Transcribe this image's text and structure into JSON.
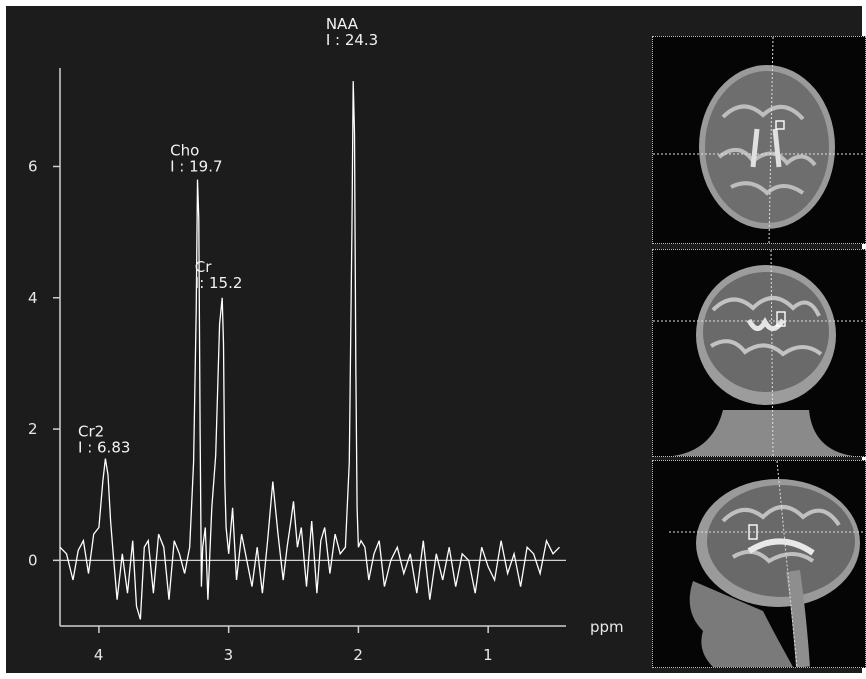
{
  "chart_data": {
    "type": "line",
    "title": "",
    "xlabel": "ppm",
    "ylabel": "",
    "x_reversed": true,
    "xlim": [
      4.3,
      0.4
    ],
    "ylim": [
      -1.0,
      7.5
    ],
    "x_ticks": [
      4,
      3,
      2,
      1
    ],
    "y_ticks": [
      0,
      2,
      4,
      6
    ],
    "grid": false,
    "series": [
      {
        "values_description_free": true,
        "x": [
          4.3,
          4.25,
          4.2,
          4.16,
          4.12,
          4.08,
          4.04,
          4.0,
          3.97,
          3.95,
          3.93,
          3.91,
          3.89,
          3.86,
          3.82,
          3.78,
          3.74,
          3.71,
          3.68,
          3.65,
          3.62,
          3.58,
          3.54,
          3.5,
          3.46,
          3.42,
          3.38,
          3.34,
          3.3,
          3.27,
          3.25,
          3.24,
          3.23,
          3.22,
          3.21,
          3.2,
          3.18,
          3.16,
          3.13,
          3.1,
          3.07,
          3.05,
          3.04,
          3.03,
          3.02,
          3.0,
          2.97,
          2.94,
          2.9,
          2.86,
          2.82,
          2.78,
          2.74,
          2.7,
          2.66,
          2.62,
          2.58,
          2.55,
          2.52,
          2.5,
          2.47,
          2.44,
          2.4,
          2.36,
          2.32,
          2.29,
          2.26,
          2.22,
          2.18,
          2.14,
          2.1,
          2.07,
          2.05,
          2.04,
          2.03,
          2.02,
          2.01,
          2.0,
          1.98,
          1.95,
          1.92,
          1.88,
          1.84,
          1.8,
          1.75,
          1.7,
          1.65,
          1.6,
          1.55,
          1.5,
          1.45,
          1.4,
          1.35,
          1.3,
          1.25,
          1.2,
          1.15,
          1.1,
          1.05,
          1.0,
          0.95,
          0.9,
          0.85,
          0.8,
          0.75,
          0.7,
          0.65,
          0.6,
          0.55,
          0.5,
          0.45
        ],
        "y": [
          0.2,
          0.1,
          -0.3,
          0.15,
          0.3,
          -0.2,
          0.4,
          0.5,
          1.2,
          1.55,
          1.3,
          0.6,
          0.1,
          -0.6,
          0.1,
          -0.5,
          0.3,
          -0.7,
          -0.9,
          0.2,
          0.3,
          -0.5,
          0.4,
          0.2,
          -0.6,
          0.3,
          0.1,
          -0.2,
          0.2,
          1.5,
          3.8,
          5.8,
          5.2,
          2.0,
          -0.4,
          0.2,
          0.5,
          -0.6,
          0.8,
          1.6,
          3.6,
          4.0,
          3.3,
          1.2,
          0.5,
          0.1,
          0.8,
          -0.3,
          0.4,
          0.0,
          -0.4,
          0.2,
          -0.5,
          0.3,
          1.2,
          0.4,
          -0.3,
          0.2,
          0.6,
          0.9,
          0.2,
          0.5,
          -0.4,
          0.6,
          -0.5,
          0.3,
          0.5,
          -0.2,
          0.4,
          0.1,
          0.2,
          1.5,
          5.0,
          7.3,
          6.5,
          3.0,
          0.8,
          0.2,
          0.3,
          0.2,
          -0.3,
          0.1,
          0.3,
          -0.4,
          0.0,
          0.2,
          -0.2,
          0.1,
          -0.5,
          0.3,
          -0.6,
          0.1,
          -0.3,
          0.2,
          -0.4,
          0.1,
          0.0,
          -0.5,
          0.2,
          -0.1,
          -0.3,
          0.3,
          -0.2,
          0.1,
          -0.4,
          0.2,
          0.1,
          -0.2,
          0.3,
          0.1,
          0.2
        ]
      }
    ],
    "annotations": [
      {
        "name": "NAA",
        "value_text": "I : 24.3",
        "x": 2.02,
        "y": 7.3
      },
      {
        "name": "Cho",
        "value_text": "I : 19.7",
        "x": 3.22,
        "y": 5.8
      },
      {
        "name": "Cr",
        "value_text": "I: 15.2",
        "x": 3.03,
        "y": 4.0
      },
      {
        "name": "Cr2",
        "value_text": "I : 6.83",
        "x": 3.93,
        "y": 1.55
      }
    ]
  },
  "axis": {
    "x_unit": "ppm",
    "x_ticks": [
      "4",
      "3",
      "2",
      "1"
    ],
    "y_ticks": [
      "0",
      "2",
      "4",
      "6"
    ]
  },
  "peaks": [
    {
      "name": "NAA",
      "value": "I : 24.3"
    },
    {
      "name": "Cho",
      "value": "I : 19.7"
    },
    {
      "name": "Cr",
      "value": "I: 15.2"
    },
    {
      "name": "Cr2",
      "value": "I : 6.83"
    }
  ],
  "colors": {
    "background": "#1c1c1c",
    "trace": "#ffffff",
    "axis": "#d9d9d9",
    "text": "#ebebeb"
  },
  "localizer_views": [
    "axial",
    "coronal",
    "sagittal"
  ]
}
